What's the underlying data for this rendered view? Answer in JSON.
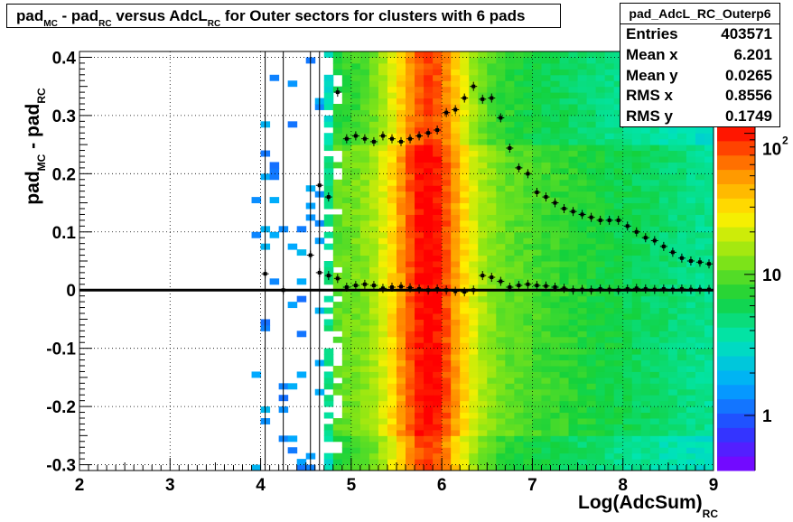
{
  "title": {
    "part1": "pad",
    "sub1": "MC",
    "part2": " - pad",
    "sub2": "RC",
    "part3": " versus AdcL",
    "sub3": "RC",
    "part4": " for Outer sectors for clusters with 6 pads"
  },
  "stats": {
    "name": "pad_AdcL_RC_Outerp6",
    "rows": [
      {
        "label": "Entries",
        "value": "403571"
      },
      {
        "label": "Mean x",
        "value": "6.201"
      },
      {
        "label": "Mean y",
        "value": "0.0265"
      },
      {
        "label": "RMS x",
        "value": "0.8556"
      },
      {
        "label": "RMS y",
        "value": "0.1749"
      }
    ]
  },
  "axes": {
    "ylabel": {
      "a": "pad",
      "sa": "MC",
      "b": " - pad",
      "sb": "RC"
    },
    "xlabel": {
      "a": "Log(AdcSum)",
      "sa": "RC"
    },
    "xticks": [
      "2",
      "3",
      "4",
      "5",
      "6",
      "7",
      "8",
      "9"
    ],
    "yticks": [
      "-0.3",
      "-0.2",
      "-0.1",
      "0",
      "0.1",
      "0.2",
      "0.3",
      "0.4"
    ]
  },
  "chart_data": {
    "type": "heatmap",
    "title": "pad_MC - pad_RC versus AdcL_RC for Outer sectors for clusters with 6 pads",
    "xlabel": "Log(AdcSum)_RC",
    "ylabel": "pad_MC - pad_RC",
    "xlim": [
      2,
      9
    ],
    "ylim": [
      -0.31,
      0.41
    ],
    "z_scale": "log",
    "colorbar_ticks": [
      "1",
      "10",
      "10^2"
    ],
    "grid": true,
    "profile_mean": {
      "x": [
        4.05,
        4.25,
        4.55,
        4.65,
        4.75,
        4.85,
        4.95,
        5.05,
        5.15,
        5.25,
        5.35,
        5.45,
        5.55,
        5.65,
        5.75,
        5.85,
        5.95,
        6.05,
        6.15,
        6.25,
        6.35,
        6.45,
        6.55,
        6.65,
        6.75,
        6.85,
        6.95,
        7.05,
        7.15,
        7.25,
        7.35,
        7.45,
        7.55,
        7.65,
        7.75,
        7.85,
        7.95,
        8.05,
        8.15,
        8.25,
        8.35,
        8.45,
        8.55,
        8.65,
        8.75,
        8.85,
        8.95
      ],
      "y": [
        0.028,
        0.0,
        0.06,
        0.03,
        0.025,
        0.02,
        0.005,
        0.008,
        0.01,
        0.008,
        0.003,
        0.005,
        0.006,
        0.004,
        0.002,
        0.0,
        0.002,
        0.0,
        -0.002,
        -0.003,
        0.0,
        0.025,
        0.022,
        0.015,
        0.005,
        0.008,
        0.01,
        0.008,
        0.007,
        0.005,
        0.003,
        0.0,
        0.001,
        0.0,
        0.002,
        0.001,
        0.0,
        0.002,
        0.003,
        0.002,
        0.001,
        0.002,
        0.001,
        0.002,
        0.001,
        0.001,
        0.001
      ]
    },
    "profile_rms": {
      "x": [
        4.65,
        4.75,
        4.85,
        4.95,
        5.05,
        5.15,
        5.25,
        5.35,
        5.45,
        5.55,
        5.65,
        5.75,
        5.85,
        5.95,
        6.05,
        6.15,
        6.25,
        6.35,
        6.45,
        6.55,
        6.65,
        6.75,
        6.85,
        6.95,
        7.05,
        7.15,
        7.25,
        7.35,
        7.45,
        7.55,
        7.65,
        7.75,
        7.85,
        7.95,
        8.05,
        8.15,
        8.25,
        8.35,
        8.45,
        8.55,
        8.65,
        8.75,
        8.85,
        8.95
      ],
      "y": [
        0.18,
        0.16,
        0.34,
        0.26,
        0.265,
        0.26,
        0.255,
        0.265,
        0.26,
        0.255,
        0.26,
        0.265,
        0.27,
        0.275,
        0.305,
        0.31,
        0.33,
        0.35,
        0.328,
        0.33,
        0.296,
        0.244,
        0.21,
        0.2,
        0.168,
        0.16,
        0.15,
        0.14,
        0.135,
        0.13,
        0.125,
        0.12,
        0.12,
        0.12,
        0.11,
        0.1,
        0.09,
        0.085,
        0.075,
        0.065,
        0.055,
        0.05,
        0.048,
        0.045
      ]
    }
  }
}
